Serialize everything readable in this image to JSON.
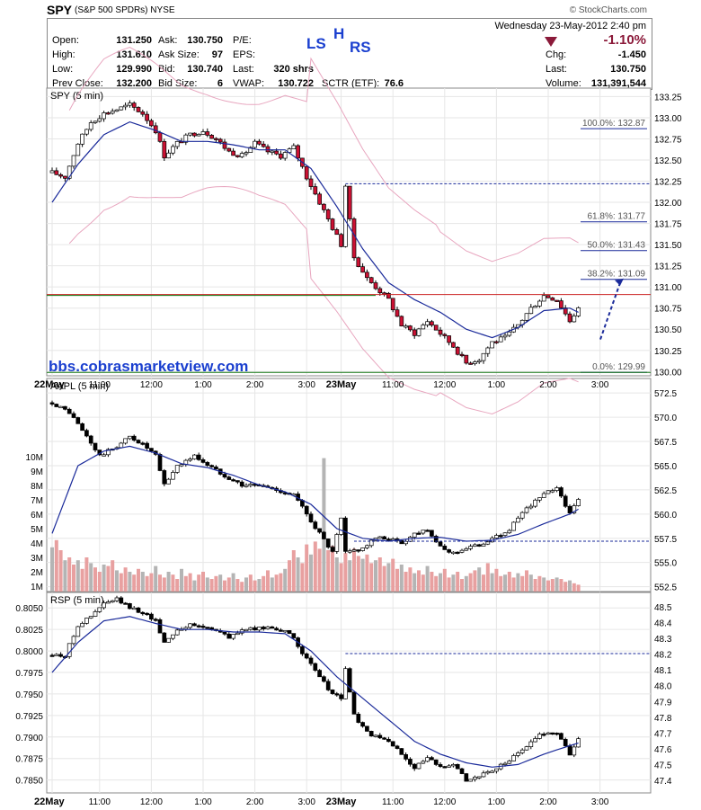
{
  "header": {
    "symbol": "SPY",
    "description": "(S&P 500 SPDRs)",
    "exchange": "NYSE",
    "copyright": "© StockCharts.com",
    "datetime": "Wednesday  23-May-2012  2:40 pm"
  },
  "quote": {
    "open_label": "Open:",
    "open": "131.250",
    "high_label": "High:",
    "high": "131.610",
    "low_label": "Low:",
    "low": "129.990",
    "prev_label": "Prev Close:",
    "prev": "132.200",
    "ask_label": "Ask:",
    "ask": "130.750",
    "asksize_label": "Ask Size:",
    "asksize": "97",
    "bid_label": "Bid:",
    "bid": "130.740",
    "bidsize_label": "Bid Size:",
    "bidsize": "6",
    "pe_label": "P/E:",
    "pe": "",
    "eps_label": "EPS:",
    "eps": "",
    "last_label": "Last:",
    "last_shares": "320 shrs",
    "vwap_label": "VWAP:",
    "vwap": "130.722",
    "sctr_label": "SCTR (ETF):",
    "sctr": "76.6",
    "pct_change": "-1.10%",
    "chg_label": "Chg:",
    "chg": "-1.450",
    "last2_label": "Last:",
    "last2": "130.750",
    "volume_label": "Volume:",
    "volume": "131,391,544"
  },
  "annotation": {
    "ls": "LS",
    "h": "H",
    "rs": "RS",
    "watermark": "bbs.cobrasmarketview.com"
  },
  "colors": {
    "up": "#ffffff",
    "down": "#cc1133",
    "down_rsp": "#000000",
    "ma": "#1a2a9a",
    "band": "#e8a6bf",
    "vol_up": "#b4b4b4",
    "vol_down": "#e8a0a0",
    "dashed": "#1a2a9a",
    "support": "#117711",
    "resistance": "#cc2222"
  },
  "chart_data": [
    {
      "type": "candlestick",
      "title": "SPY (5 min)",
      "ylim": [
        129.95,
        133.35
      ],
      "y_ticks": [
        "133.25",
        "133.00",
        "132.75",
        "132.50",
        "132.25",
        "132.00",
        "131.75",
        "131.50",
        "131.25",
        "131.00",
        "130.75",
        "130.50",
        "130.25",
        "130.00"
      ],
      "x_ticks": [
        "22May",
        "11:00",
        "12:00",
        "1:00",
        "2:00",
        "3:00",
        "23May",
        "11:00",
        "12:00",
        "1:00",
        "2:00",
        "3:00"
      ],
      "price_points": [
        [
          0,
          132.35
        ],
        [
          3,
          132.3
        ],
        [
          6,
          132.7
        ],
        [
          9,
          132.95
        ],
        [
          12,
          133.05
        ],
        [
          15,
          133.1
        ],
        [
          18,
          133.15
        ],
        [
          21,
          133.05
        ],
        [
          24,
          132.85
        ],
        [
          26,
          132.55
        ],
        [
          29,
          132.7
        ],
        [
          32,
          132.8
        ],
        [
          35,
          132.85
        ],
        [
          38,
          132.75
        ],
        [
          41,
          132.6
        ],
        [
          44,
          132.55
        ],
        [
          47,
          132.7
        ],
        [
          50,
          132.6
        ],
        [
          53,
          132.55
        ],
        [
          56,
          132.65
        ],
        [
          59,
          132.3
        ],
        [
          62,
          132.0
        ],
        [
          65,
          131.7
        ],
        [
          67,
          131.5
        ],
        [
          68,
          132.2
        ],
        [
          70,
          131.35
        ],
        [
          73,
          131.1
        ],
        [
          75,
          131.0
        ],
        [
          78,
          130.85
        ],
        [
          81,
          130.55
        ],
        [
          84,
          130.45
        ],
        [
          87,
          130.6
        ],
        [
          90,
          130.45
        ],
        [
          93,
          130.3
        ],
        [
          96,
          130.1
        ],
        [
          99,
          130.15
        ],
        [
          102,
          130.35
        ],
        [
          105,
          130.4
        ],
        [
          108,
          130.55
        ],
        [
          111,
          130.75
        ],
        [
          114,
          130.9
        ],
        [
          117,
          130.85
        ],
        [
          120,
          130.6
        ],
        [
          122,
          130.75
        ]
      ],
      "ma_points": [
        [
          0,
          132.0
        ],
        [
          6,
          132.45
        ],
        [
          12,
          132.8
        ],
        [
          18,
          132.95
        ],
        [
          24,
          132.85
        ],
        [
          30,
          132.72
        ],
        [
          36,
          132.72
        ],
        [
          42,
          132.68
        ],
        [
          48,
          132.62
        ],
        [
          54,
          132.62
        ],
        [
          60,
          132.4
        ],
        [
          66,
          131.95
        ],
        [
          72,
          131.45
        ],
        [
          78,
          131.05
        ],
        [
          84,
          130.85
        ],
        [
          90,
          130.7
        ],
        [
          96,
          130.5
        ],
        [
          102,
          130.4
        ],
        [
          108,
          130.52
        ],
        [
          114,
          130.72
        ],
        [
          120,
          130.75
        ],
        [
          122,
          130.7
        ]
      ],
      "fib_levels": [
        {
          "label": "100.0%: 132.87",
          "value": 132.87
        },
        {
          "label": "61.8%: 131.77",
          "value": 131.77
        },
        {
          "label": "50.0%: 131.43",
          "value": 131.43
        },
        {
          "label": "38.2%: 131.09",
          "value": 131.09
        },
        {
          "label": "0.0%: 129.99",
          "value": 129.99
        }
      ],
      "resistance_line": 130.91,
      "dashed_line": 132.22
    },
    {
      "type": "candlestick",
      "title": "AAPL (5 min)",
      "ylim": [
        552.0,
        574.0
      ],
      "y_ticks": [
        "572.5",
        "570.0",
        "567.5",
        "565.0",
        "562.5",
        "560.0",
        "557.5",
        "555.0",
        "552.5"
      ],
      "volume_ticks": [
        "10M",
        "9M",
        "8M",
        "7M",
        "6M",
        "5M",
        "4M",
        "3M",
        "2M",
        "1M"
      ],
      "price_points": [
        [
          0,
          571.5
        ],
        [
          4,
          570.5
        ],
        [
          8,
          568.0
        ],
        [
          11,
          566.0
        ],
        [
          15,
          567.0
        ],
        [
          18,
          568.0
        ],
        [
          21,
          567.2
        ],
        [
          24,
          566.0
        ],
        [
          26,
          563.0
        ],
        [
          29,
          565.0
        ],
        [
          33,
          566.0
        ],
        [
          37,
          564.8
        ],
        [
          40,
          564.0
        ],
        [
          44,
          563.0
        ],
        [
          48,
          563.0
        ],
        [
          52,
          562.5
        ],
        [
          56,
          562.0
        ],
        [
          59,
          560.0
        ],
        [
          62,
          558.0
        ],
        [
          65,
          556.0
        ],
        [
          67,
          559.5
        ],
        [
          68,
          556.0
        ],
        [
          72,
          556.5
        ],
        [
          75,
          557.5
        ],
        [
          78,
          557.5
        ],
        [
          81,
          557.0
        ],
        [
          84,
          558.0
        ],
        [
          87,
          558.5
        ],
        [
          90,
          556.5
        ],
        [
          93,
          556.0
        ],
        [
          96,
          556.5
        ],
        [
          99,
          556.8
        ],
        [
          102,
          557.5
        ],
        [
          105,
          558.0
        ],
        [
          108,
          559.5
        ],
        [
          111,
          561.0
        ],
        [
          114,
          562.0
        ],
        [
          117,
          562.8
        ],
        [
          120,
          560.0
        ],
        [
          122,
          561.5
        ]
      ],
      "ma_points": [
        [
          0,
          558.0
        ],
        [
          6,
          565.0
        ],
        [
          12,
          566.5
        ],
        [
          18,
          567.0
        ],
        [
          24,
          566.3
        ],
        [
          30,
          565.2
        ],
        [
          36,
          564.8
        ],
        [
          42,
          564.0
        ],
        [
          48,
          563.0
        ],
        [
          54,
          562.3
        ],
        [
          60,
          561.0
        ],
        [
          66,
          558.5
        ],
        [
          72,
          557.5
        ],
        [
          78,
          557.2
        ],
        [
          84,
          557.5
        ],
        [
          90,
          557.6
        ],
        [
          96,
          557.2
        ],
        [
          102,
          557.3
        ],
        [
          108,
          557.9
        ],
        [
          114,
          559.0
        ],
        [
          120,
          560.0
        ],
        [
          122,
          560.5
        ]
      ],
      "dashed_line": 557.2,
      "volume_millions": [
        3.7,
        4.2,
        3.5,
        2.8,
        3.0,
        2.5,
        2.8,
        2.2,
        3.0,
        2.6,
        2.3,
        2.0,
        2.5,
        2.4,
        2.8,
        2.1,
        1.9,
        2.3,
        2.0,
        1.8,
        2.2,
        2.0,
        1.7,
        1.9,
        2.4,
        1.8,
        1.6,
        2.0,
        1.8,
        1.5,
        2.2,
        1.7,
        1.9,
        1.4,
        1.8,
        2.0,
        1.6,
        1.5,
        1.7,
        1.8,
        1.4,
        1.6,
        1.9,
        1.5,
        1.3,
        1.6,
        1.8,
        1.4,
        1.5,
        1.7,
        2.1,
        1.6,
        1.8,
        1.9,
        2.2,
        2.8,
        3.5,
        3.0,
        2.6,
        3.9,
        3.2,
        4.1,
        3.6,
        9.9,
        3.5,
        3.8,
        3.0,
        2.6,
        3.3,
        2.8,
        3.6,
        3.1,
        2.9,
        3.2,
        2.6,
        2.8,
        3.0,
        2.4,
        2.6,
        2.9,
        2.2,
        2.5,
        2.0,
        2.3,
        1.9,
        2.1,
        1.8,
        2.4,
        2.0,
        1.7,
        1.9,
        2.2,
        1.6,
        1.8,
        2.0,
        1.5,
        1.7,
        1.9,
        2.1,
        2.3,
        1.8,
        2.6,
        1.9,
        2.2,
        1.7,
        1.8,
        2.0,
        1.6,
        1.9,
        1.7,
        2.1,
        1.8,
        1.5,
        1.7,
        1.6,
        1.4,
        1.5,
        1.6,
        1.5,
        1.3,
        1.4,
        1.2,
        1.1
      ]
    },
    {
      "type": "candlestick",
      "title": "RSP (5 min)",
      "ylim": [
        0.7835,
        0.8068
      ],
      "y_ticks": [
        "0.8050",
        "0.8025",
        "0.8000",
        "0.7975",
        "0.7950",
        "0.7925",
        "0.7900",
        "0.7875",
        "0.7850"
      ],
      "right_axis_ticks": [
        "48.5",
        "48.4",
        "48.3",
        "48.2",
        "48.1",
        "48.0",
        "47.9",
        "47.8",
        "47.7",
        "47.6",
        "47.5",
        "47.4"
      ],
      "price_points": [
        [
          0,
          0.7995
        ],
        [
          3,
          0.7995
        ],
        [
          6,
          0.803
        ],
        [
          9,
          0.804
        ],
        [
          12,
          0.8055
        ],
        [
          15,
          0.806
        ],
        [
          18,
          0.805
        ],
        [
          21,
          0.8045
        ],
        [
          24,
          0.8035
        ],
        [
          26,
          0.801
        ],
        [
          29,
          0.8025
        ],
        [
          32,
          0.803
        ],
        [
          35,
          0.8028
        ],
        [
          38,
          0.8025
        ],
        [
          41,
          0.8015
        ],
        [
          44,
          0.8025
        ],
        [
          47,
          0.8025
        ],
        [
          50,
          0.8028
        ],
        [
          53,
          0.8025
        ],
        [
          56,
          0.8015
        ],
        [
          59,
          0.799
        ],
        [
          62,
          0.797
        ],
        [
          65,
          0.795
        ],
        [
          67,
          0.7945
        ],
        [
          68,
          0.798
        ],
        [
          70,
          0.7925
        ],
        [
          73,
          0.7905
        ],
        [
          75,
          0.79
        ],
        [
          78,
          0.7895
        ],
        [
          81,
          0.788
        ],
        [
          84,
          0.7865
        ],
        [
          87,
          0.7875
        ],
        [
          90,
          0.7865
        ],
        [
          93,
          0.787
        ],
        [
          96,
          0.785
        ],
        [
          99,
          0.7855
        ],
        [
          102,
          0.786
        ],
        [
          105,
          0.787
        ],
        [
          108,
          0.788
        ],
        [
          111,
          0.7895
        ],
        [
          114,
          0.7905
        ],
        [
          117,
          0.7905
        ],
        [
          120,
          0.788
        ],
        [
          122,
          0.7898
        ]
      ],
      "ma_points": [
        [
          0,
          0.7975
        ],
        [
          6,
          0.801
        ],
        [
          12,
          0.8035
        ],
        [
          18,
          0.804
        ],
        [
          24,
          0.8032
        ],
        [
          30,
          0.8025
        ],
        [
          36,
          0.8025
        ],
        [
          42,
          0.8022
        ],
        [
          48,
          0.8022
        ],
        [
          54,
          0.802
        ],
        [
          60,
          0.8
        ],
        [
          66,
          0.797
        ],
        [
          72,
          0.7945
        ],
        [
          78,
          0.792
        ],
        [
          84,
          0.7895
        ],
        [
          90,
          0.788
        ],
        [
          96,
          0.787
        ],
        [
          102,
          0.7865
        ],
        [
          108,
          0.7868
        ],
        [
          114,
          0.788
        ],
        [
          120,
          0.789
        ],
        [
          122,
          0.7893
        ]
      ],
      "dashed_line": 0.7997
    }
  ],
  "x_labels": [
    "22May",
    "11:00",
    "12:00",
    "1:00",
    "2:00",
    "3:00",
    "23May",
    "11:00",
    "12:00",
    "1:00",
    "2:00",
    "3:00"
  ]
}
